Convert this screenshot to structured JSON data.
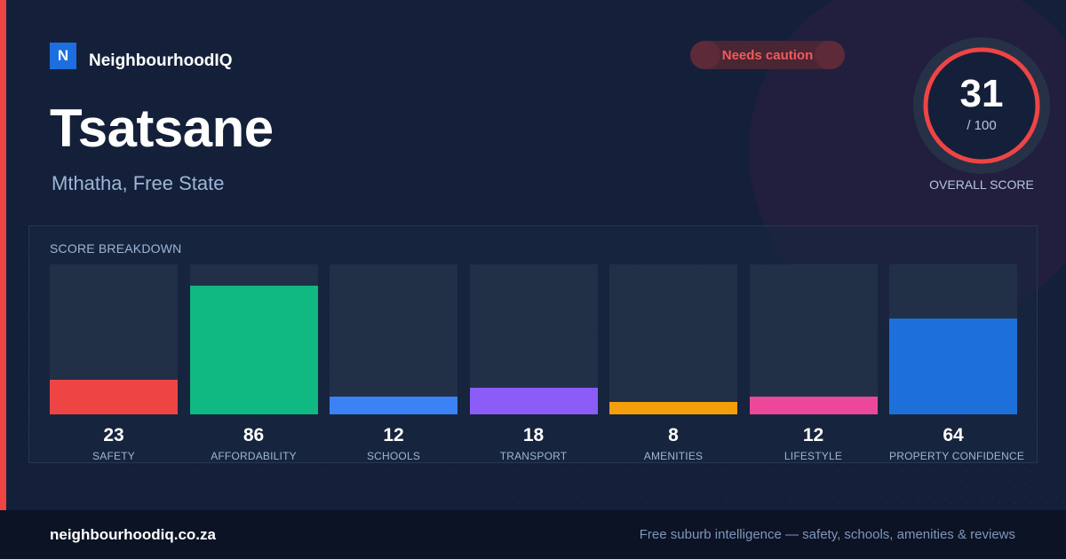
{
  "brand": {
    "mark": "N",
    "name": "NeighbourhoodIQ"
  },
  "status": {
    "label": "Needs caution"
  },
  "suburb": {
    "name": "Tsatsane",
    "location": "Mthatha, Free State"
  },
  "overall_score": {
    "value": "31",
    "max_label": "/ 100",
    "caption": "OVERALL SCORE",
    "fraction": 0.31,
    "color": "#ef4444"
  },
  "breakdown": {
    "title": "SCORE BREAKDOWN",
    "items": [
      {
        "label": "SAFETY",
        "value": 23,
        "color": "#ef4444"
      },
      {
        "label": "AFFORDABILITY",
        "value": 86,
        "color": "#10b981"
      },
      {
        "label": "SCHOOLS",
        "value": 12,
        "color": "#3b82f6"
      },
      {
        "label": "TRANSPORT",
        "value": 18,
        "color": "#8b5cf6"
      },
      {
        "label": "AMENITIES",
        "value": 8,
        "color": "#f59e0b"
      },
      {
        "label": "LIFESTYLE",
        "value": 12,
        "color": "#ec4899"
      },
      {
        "label": "PROPERTY CONFIDENCE",
        "value": 64,
        "color": "#1d6fd9"
      }
    ]
  },
  "footer": {
    "url": "neighbourhoodiq.co.za",
    "tagline": "Free suburb intelligence — safety, schools, amenities & reviews"
  }
}
